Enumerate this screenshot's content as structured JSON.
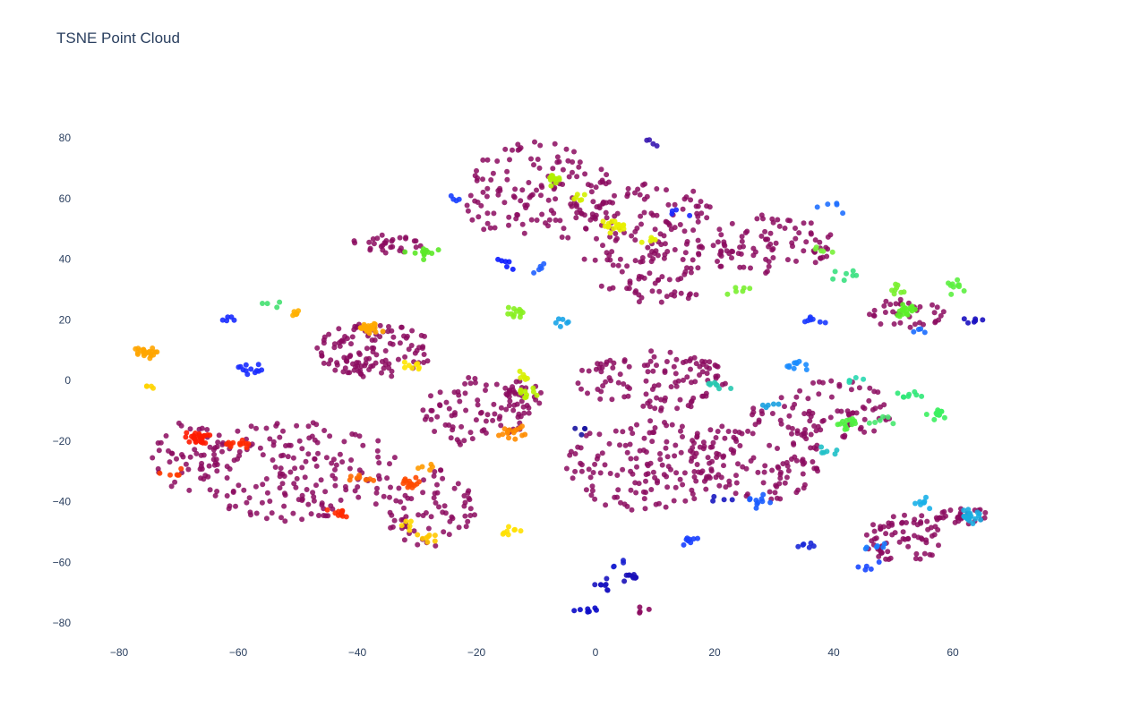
{
  "chart_data": {
    "type": "scatter",
    "title": "TSNE Point Cloud",
    "xlabel": "",
    "ylabel": "",
    "xlim": [
      -83,
      71
    ],
    "ylim": [
      -87,
      93
    ],
    "grid": false,
    "x_ticks": [
      -80,
      -60,
      -40,
      -20,
      0,
      20,
      40,
      60
    ],
    "y_ticks": [
      -80,
      -60,
      -40,
      -20,
      0,
      20,
      40,
      60,
      80
    ],
    "x_tick_labels": [
      "−80",
      "−60",
      "−40",
      "−20",
      "0",
      "20",
      "40",
      "60"
    ],
    "y_tick_labels": [
      "−80",
      "−60",
      "−40",
      "−20",
      "0",
      "20",
      "40",
      "60",
      "80"
    ],
    "background_color": "#8b0a5f",
    "background_regions": [
      {
        "cx": -37,
        "cy": 10,
        "rx": 10,
        "ry": 9,
        "n": 120
      },
      {
        "cx": -50,
        "cy": -30,
        "rx": 17,
        "ry": 17,
        "n": 170
      },
      {
        "cx": -20,
        "cy": -10,
        "rx": 9,
        "ry": 12,
        "n": 80
      },
      {
        "cx": -68,
        "cy": -25,
        "rx": 7,
        "ry": 12,
        "n": 50
      },
      {
        "cx": -28,
        "cy": -42,
        "rx": 8,
        "ry": 13,
        "n": 70
      },
      {
        "cx": -10,
        "cy": 62,
        "rx": 13,
        "ry": 17,
        "n": 140
      },
      {
        "cx": 10,
        "cy": 45,
        "rx": 13,
        "ry": 20,
        "n": 170
      },
      {
        "cx": -35,
        "cy": 45,
        "rx": 6,
        "ry": 3,
        "n": 30
      },
      {
        "cx": 30,
        "cy": 45,
        "rx": 10,
        "ry": 10,
        "n": 80
      },
      {
        "cx": 52,
        "cy": 22,
        "rx": 7,
        "ry": 5,
        "n": 35
      },
      {
        "cx": 10,
        "cy": 0,
        "rx": 13,
        "ry": 10,
        "n": 110
      },
      {
        "cx": 8,
        "cy": -28,
        "rx": 13,
        "ry": 15,
        "n": 140
      },
      {
        "cx": 27,
        "cy": -25,
        "rx": 11,
        "ry": 16,
        "n": 120
      },
      {
        "cx": 40,
        "cy": -10,
        "rx": 10,
        "ry": 10,
        "n": 70
      },
      {
        "cx": 52,
        "cy": -52,
        "rx": 7,
        "ry": 8,
        "n": 70
      },
      {
        "cx": 62,
        "cy": -45,
        "rx": 5,
        "ry": 3,
        "n": 30
      },
      {
        "cx": -12,
        "cy": -5,
        "rx": 3,
        "ry": 6,
        "n": 25
      }
    ],
    "clusters": [
      {
        "x": -76,
        "y": 9,
        "color": "#ffa500",
        "n": 22
      },
      {
        "x": -75,
        "y": -2,
        "color": "#ffd400",
        "n": 4
      },
      {
        "x": -67,
        "y": -19,
        "color": "#ff1a00",
        "n": 25
      },
      {
        "x": -60,
        "y": -21,
        "color": "#ff2a00",
        "n": 12
      },
      {
        "x": -58,
        "y": 4,
        "color": "#1a2cff",
        "n": 12
      },
      {
        "x": -62,
        "y": 20,
        "color": "#1a2cff",
        "n": 5
      },
      {
        "x": -71,
        "y": -31,
        "color": "#ff3c00",
        "n": 6
      },
      {
        "x": -43,
        "y": -44,
        "color": "#ff2a00",
        "n": 12
      },
      {
        "x": -31,
        "y": -34,
        "color": "#ff4a00",
        "n": 15
      },
      {
        "x": -39,
        "y": -33,
        "color": "#ff6a00",
        "n": 8
      },
      {
        "x": -38,
        "y": 17,
        "color": "#ffaa00",
        "n": 25
      },
      {
        "x": -50,
        "y": 22,
        "color": "#ffb000",
        "n": 7
      },
      {
        "x": -31,
        "y": 5,
        "color": "#ffe400",
        "n": 8
      },
      {
        "x": -14,
        "y": -17,
        "color": "#ff8c00",
        "n": 15
      },
      {
        "x": -28,
        "y": -29,
        "color": "#ff9a00",
        "n": 5
      },
      {
        "x": -28,
        "y": -52,
        "color": "#ffc800",
        "n": 8
      },
      {
        "x": -14,
        "y": -49,
        "color": "#ffe000",
        "n": 8
      },
      {
        "x": -32,
        "y": -48,
        "color": "#ffd800",
        "n": 5
      },
      {
        "x": -54,
        "y": 25,
        "color": "#44e070",
        "n": 4
      },
      {
        "x": -12,
        "y": -4,
        "color": "#b8f000",
        "n": 10
      },
      {
        "x": -12,
        "y": 1,
        "color": "#d8f000",
        "n": 6
      },
      {
        "x": -29,
        "y": 42,
        "color": "#5ce828",
        "n": 14
      },
      {
        "x": -7,
        "y": 67,
        "color": "#b0f000",
        "n": 12
      },
      {
        "x": -13,
        "y": 22,
        "color": "#88f020",
        "n": 12
      },
      {
        "x": 3,
        "y": 51,
        "color": "#e8f000",
        "n": 18
      },
      {
        "x": -3,
        "y": 60,
        "color": "#d4f000",
        "n": 6
      },
      {
        "x": 10,
        "y": 46,
        "color": "#e0f000",
        "n": 6
      },
      {
        "x": -5,
        "y": 19,
        "color": "#1aa4e8",
        "n": 6
      },
      {
        "x": -9,
        "y": 38,
        "color": "#2060ff",
        "n": 5
      },
      {
        "x": -15,
        "y": 38,
        "color": "#0a1aff",
        "n": 6
      },
      {
        "x": 10,
        "y": 78,
        "color": "#3a1ab0",
        "n": 4
      },
      {
        "x": 25,
        "y": 30,
        "color": "#7af030",
        "n": 6
      },
      {
        "x": 38,
        "y": 43,
        "color": "#78f038",
        "n": 5
      },
      {
        "x": 41,
        "y": 57,
        "color": "#2070ff",
        "n": 5
      },
      {
        "x": 36,
        "y": 20,
        "color": "#1a38ff",
        "n": 8
      },
      {
        "x": 42,
        "y": 35,
        "color": "#3ae080",
        "n": 7
      },
      {
        "x": 52,
        "y": 23,
        "color": "#5cf028",
        "n": 18
      },
      {
        "x": 51,
        "y": 30,
        "color": "#7af030",
        "n": 8
      },
      {
        "x": 61,
        "y": 31,
        "color": "#5cf040",
        "n": 10
      },
      {
        "x": 63,
        "y": 20,
        "color": "#1a10c0",
        "n": 6
      },
      {
        "x": 54,
        "y": 16,
        "color": "#1a6cff",
        "n": 4
      },
      {
        "x": 58,
        "y": -11,
        "color": "#3cf060",
        "n": 14
      },
      {
        "x": 52,
        "y": -5,
        "color": "#30e878",
        "n": 8
      },
      {
        "x": 42,
        "y": -14,
        "color": "#50f040",
        "n": 14
      },
      {
        "x": 48,
        "y": -13,
        "color": "#48e870",
        "n": 6
      },
      {
        "x": 43,
        "y": 0,
        "color": "#28d8b0",
        "n": 5
      },
      {
        "x": 39,
        "y": -24,
        "color": "#20c0c8",
        "n": 6
      },
      {
        "x": 34,
        "y": 5,
        "color": "#1a8cff",
        "n": 10
      },
      {
        "x": 20,
        "y": -2,
        "color": "#28c8b0",
        "n": 8
      },
      {
        "x": 29,
        "y": -8,
        "color": "#1aa0e0",
        "n": 5
      },
      {
        "x": 27,
        "y": -40,
        "color": "#1a5cff",
        "n": 10
      },
      {
        "x": 16,
        "y": -53,
        "color": "#1a40ff",
        "n": 8
      },
      {
        "x": 35,
        "y": -54,
        "color": "#1a28d8",
        "n": 6
      },
      {
        "x": 63,
        "y": -45,
        "color": "#1aace0",
        "n": 20
      },
      {
        "x": 55,
        "y": -40,
        "color": "#1ab0e8",
        "n": 8
      },
      {
        "x": 48,
        "y": -55,
        "color": "#1a7cff",
        "n": 6
      },
      {
        "x": 46,
        "y": -62,
        "color": "#1a48ff",
        "n": 5
      },
      {
        "x": -1,
        "y": -76,
        "color": "#0a0ac8",
        "n": 7
      },
      {
        "x": 1,
        "y": -68,
        "color": "#1a14c0",
        "n": 8
      },
      {
        "x": 6,
        "y": -65,
        "color": "#1a10b8",
        "n": 10
      },
      {
        "x": 3,
        "y": -61,
        "color": "#1a20d0",
        "n": 4
      },
      {
        "x": 8,
        "y": -76,
        "color": "#8b0a5f",
        "n": 4
      },
      {
        "x": -2,
        "y": -16,
        "color": "#1a14a0",
        "n": 4
      },
      {
        "x": 20,
        "y": -39,
        "color": "#1a18c0",
        "n": 4
      },
      {
        "x": 14,
        "y": 55,
        "color": "#1a28ff",
        "n": 4
      },
      {
        "x": -24,
        "y": 60,
        "color": "#1a40ff",
        "n": 4
      }
    ]
  }
}
